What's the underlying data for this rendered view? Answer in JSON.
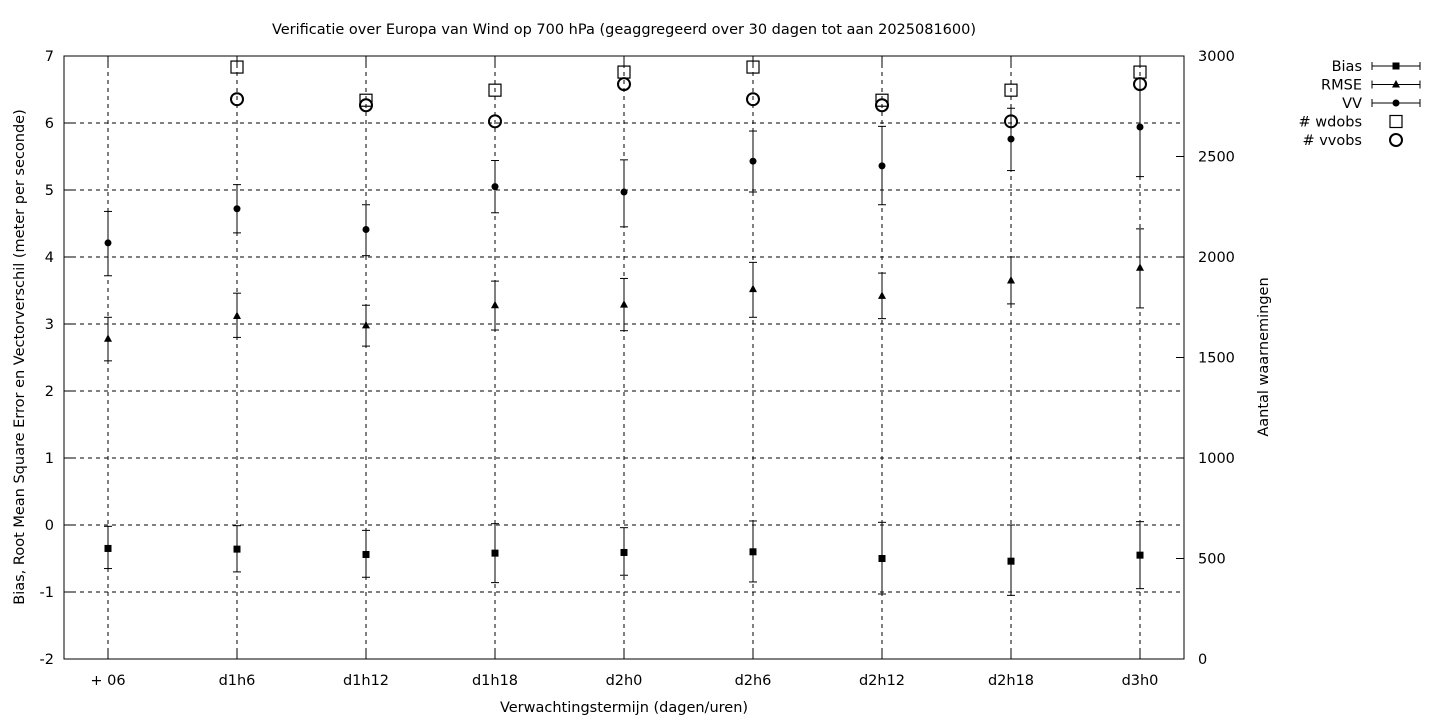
{
  "chart_data": {
    "type": "scatter",
    "title": "Verificatie over Europa van Wind op 700 hPa (geaggregeerd over 30 dagen tot aan 2025081600)",
    "xlabel": "Verwachtingstermijn (dagen/uren)",
    "ylabel": "Bias, Root Mean Square Error en Vectorverschil (meter per seconde)",
    "y2label": "Aantal waarnemingen",
    "categories": [
      "+ 06",
      "d1h6",
      "d1h12",
      "d1h18",
      "d2h0",
      "d2h6",
      "d2h12",
      "d2h18",
      "d3h0"
    ],
    "ylim": [
      -2,
      7
    ],
    "yticks": [
      -2,
      -1,
      0,
      1,
      2,
      3,
      4,
      5,
      6,
      7
    ],
    "y2lim": [
      0,
      3000
    ],
    "y2ticks": [
      0,
      500,
      1000,
      1500,
      2000,
      2500,
      3000
    ],
    "grid": true,
    "legend_position": "outside-top-right",
    "series": [
      {
        "name": "Bias",
        "axis": "left",
        "marker": "filled-square",
        "errorbars": true,
        "values": [
          -0.35,
          -0.36,
          -0.44,
          -0.42,
          -0.41,
          -0.4,
          -0.5,
          -0.54,
          -0.45
        ],
        "error_low": [
          -0.65,
          -0.7,
          -0.78,
          -0.86,
          -0.75,
          -0.85,
          -1.03,
          -1.05,
          -0.95
        ],
        "error_high": [
          -0.02,
          -0.01,
          -0.08,
          0.02,
          -0.04,
          0.06,
          0.04,
          0.0,
          0.05
        ]
      },
      {
        "name": "RMSE",
        "axis": "left",
        "marker": "filled-triangle",
        "errorbars": true,
        "values": [
          2.78,
          3.12,
          2.98,
          3.28,
          3.29,
          3.52,
          3.42,
          3.65,
          3.84
        ],
        "error_low": [
          2.45,
          2.8,
          2.67,
          2.91,
          2.9,
          3.1,
          3.08,
          3.3,
          3.24
        ],
        "error_high": [
          3.1,
          3.46,
          3.28,
          3.64,
          3.68,
          3.92,
          3.76,
          4.0,
          4.42
        ]
      },
      {
        "name": "VV",
        "axis": "left",
        "marker": "filled-circle",
        "errorbars": true,
        "values": [
          4.21,
          4.72,
          4.41,
          5.05,
          4.97,
          5.43,
          5.36,
          5.76,
          5.94
        ],
        "error_low": [
          3.72,
          4.36,
          4.02,
          4.66,
          4.45,
          4.97,
          4.78,
          5.29,
          5.2
        ],
        "error_high": [
          4.68,
          5.08,
          4.78,
          5.44,
          5.45,
          5.88,
          5.95,
          6.22,
          6.67
        ]
      },
      {
        "name": "# wdobs",
        "axis": "right",
        "marker": "open-square",
        "errorbars": false,
        "values": [
          null,
          2945,
          2780,
          2830,
          2920,
          2945,
          2780,
          2830,
          2920
        ]
      },
      {
        "name": "# vvobs",
        "axis": "right",
        "marker": "open-circle",
        "errorbars": false,
        "values": [
          null,
          2785,
          2755,
          2675,
          2860,
          2785,
          2755,
          2675,
          2860
        ]
      }
    ]
  }
}
